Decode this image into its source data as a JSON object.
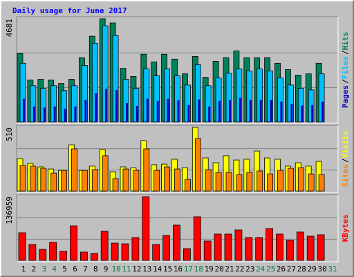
{
  "chart_data": [
    {
      "type": "bar",
      "title": "Daily usage for June 2017",
      "title_color": "#0000ff",
      "categories": [
        "1",
        "2",
        "3",
        "4",
        "5",
        "6",
        "7",
        "8",
        "9",
        "10",
        "11",
        "12",
        "13",
        "14",
        "15",
        "16",
        "17",
        "18",
        "19",
        "20",
        "21",
        "22",
        "23",
        "24",
        "25",
        "26",
        "27",
        "28",
        "29",
        "30",
        "31"
      ],
      "category_colors": [
        "#000000",
        "#000000",
        "#008040",
        "#008040",
        "#000000",
        "#000000",
        "#000000",
        "#000000",
        "#000000",
        "#008040",
        "#008040",
        "#000000",
        "#000000",
        "#000000",
        "#000000",
        "#000000",
        "#008040",
        "#008040",
        "#000000",
        "#000000",
        "#000000",
        "#000000",
        "#000000",
        "#008040",
        "#008040",
        "#000000",
        "#000000",
        "#000000",
        "#000000",
        "#000000",
        "#008040"
      ],
      "ylim": [
        0,
        4681
      ],
      "yticks": [
        4681
      ],
      "grid": true,
      "legend_separator": "/",
      "series": [
        {
          "name": "Hits",
          "color": "#00805c",
          "values": [
            3100,
            1900,
            1930,
            1900,
            1740,
            1930,
            2910,
            3890,
            4681,
            4490,
            2430,
            2060,
            3070,
            2720,
            3070,
            2850,
            2180,
            2970,
            2020,
            2750,
            2910,
            3220,
            2910,
            2910,
            2910,
            2660,
            2370,
            2120,
            2180,
            2660,
            null
          ]
        },
        {
          "name": "Files",
          "color": "#00c0ff",
          "values": [
            2660,
            1640,
            1520,
            1640,
            1420,
            1640,
            2560,
            3570,
            4360,
            3920,
            1930,
            1520,
            2400,
            2090,
            2400,
            2090,
            1670,
            2590,
            1640,
            1990,
            2210,
            2400,
            2310,
            2400,
            2310,
            1990,
            1670,
            1520,
            1450,
            2180,
            null
          ]
        },
        {
          "name": "Pages",
          "color": "#0000c0",
          "values": [
            1050,
            700,
            650,
            700,
            600,
            700,
            1000,
            1300,
            1500,
            1450,
            850,
            720,
            1050,
            950,
            1050,
            980,
            760,
            1020,
            700,
            950,
            1000,
            1100,
            1000,
            1000,
            1000,
            920,
            820,
            740,
            760,
            920,
            null
          ]
        }
      ]
    },
    {
      "type": "bar",
      "ylim": [
        0,
        510
      ],
      "yticks": [
        510
      ],
      "grid": true,
      "legend_separator": "/",
      "series": [
        {
          "name": "Visits",
          "color": "#ffff00",
          "values": [
            260,
            222,
            194,
            177,
            166,
            371,
            166,
            200,
            333,
            155,
            194,
            188,
            405,
            211,
            216,
            255,
            188,
            510,
            266,
            227,
            283,
            249,
            255,
            321,
            266,
            255,
            200,
            227,
            200,
            238,
            null
          ]
        },
        {
          "name": "Sites",
          "color": "#ff8000",
          "values": [
            205,
            200,
            183,
            144,
            166,
            338,
            166,
            172,
            283,
            100,
            177,
            166,
            338,
            166,
            194,
            177,
            94,
            421,
            172,
            150,
            150,
            133,
            150,
            161,
            138,
            166,
            183,
            188,
            138,
            133,
            null
          ]
        }
      ]
    },
    {
      "type": "bar",
      "ylim": [
        0,
        136959
      ],
      "yticks": [
        136959
      ],
      "grid": true,
      "series": [
        {
          "name": "KBytes",
          "color": "#ff0000",
          "values": [
            59500,
            34200,
            23800,
            38700,
            19400,
            74400,
            17900,
            14900,
            62500,
            37200,
            35700,
            49100,
            136959,
            34200,
            53600,
            75900,
            25300,
            93800,
            41700,
            56600,
            56600,
            65500,
            49100,
            49100,
            68500,
            56600,
            43200,
            61000,
            52100,
            55100,
            null
          ]
        }
      ]
    }
  ]
}
